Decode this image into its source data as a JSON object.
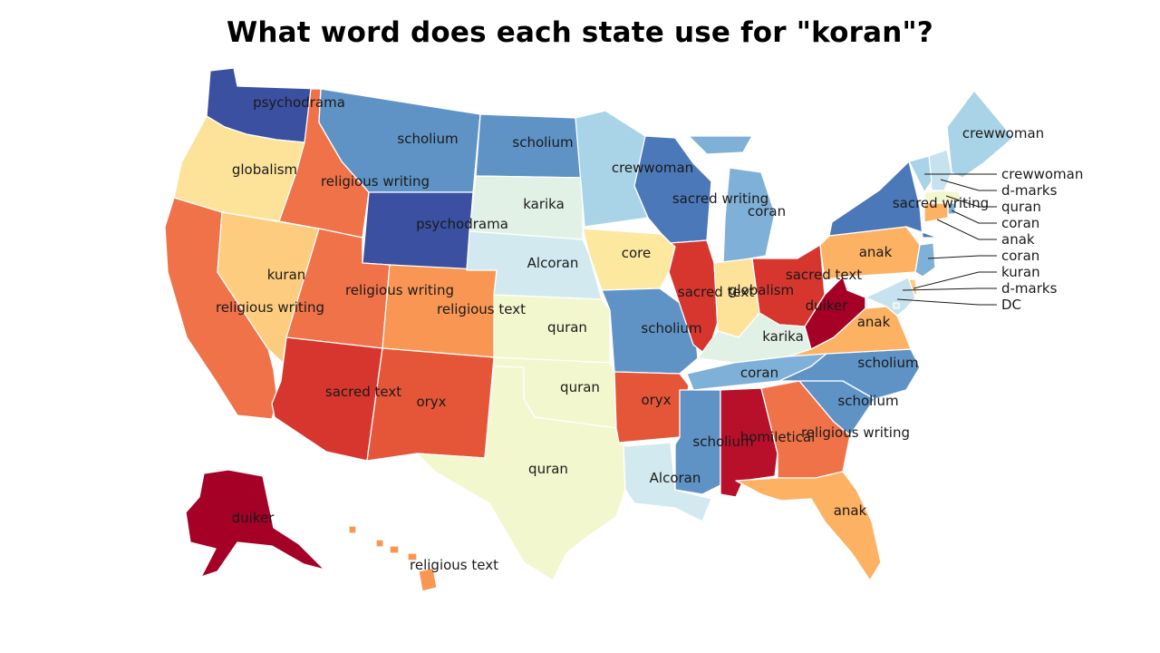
{
  "title": "What word does each state use for \"koran\"?",
  "colors": {
    "psychodrama": "#3b50a0",
    "scholium": "#5f93c6",
    "crewwoman": "#a9d4e7",
    "coran": "#7fb1d8",
    "karika": "#e2f1e6",
    "Alcoran": "#d2eaef",
    "quran": "#f3f7ce",
    "core": "#fde8a0",
    "globalism": "#fde39a",
    "kuran": "#fdcc7e",
    "anak": "#fcb163",
    "religious text": "#f99654",
    "religious writing": "#f07249",
    "oryx": "#e55538",
    "sacred text": "#d7362e",
    "duiker": "#a50026",
    "homiletical": "#b8102a",
    "sacred writing": "#4b78b8",
    "d-marks": "#c6e2ee",
    "DC": "#d2eaef"
  },
  "states": [
    {
      "id": "WA",
      "word": "psychodrama",
      "label": "psychodrama"
    },
    {
      "id": "OR",
      "word": "globalism",
      "label": "globalism"
    },
    {
      "id": "CA",
      "word": "religious writing",
      "label": "religious writing"
    },
    {
      "id": "NV",
      "word": "kuran",
      "label": "kuran"
    },
    {
      "id": "ID",
      "word": "religious writing",
      "label": "religious writing"
    },
    {
      "id": "MT",
      "word": "scholium",
      "label": "scholium"
    },
    {
      "id": "WY",
      "word": "psychodrama",
      "label": "psychodrama"
    },
    {
      "id": "UT",
      "word": "religious writing",
      "label": "religious writing"
    },
    {
      "id": "AZ",
      "word": "sacred text",
      "label": "sacred text"
    },
    {
      "id": "CO",
      "word": "religious text",
      "label": "religious text"
    },
    {
      "id": "NM",
      "word": "oryx",
      "label": "oryx"
    },
    {
      "id": "ND",
      "word": "scholium",
      "label": "scholium"
    },
    {
      "id": "SD",
      "word": "karika",
      "label": "karika"
    },
    {
      "id": "NE",
      "word": "Alcoran",
      "label": "Alcoran"
    },
    {
      "id": "KS",
      "word": "quran",
      "label": "quran"
    },
    {
      "id": "OK",
      "word": "quran",
      "label": "quran"
    },
    {
      "id": "TX",
      "word": "quran",
      "label": "quran"
    },
    {
      "id": "MN",
      "word": "crewwoman",
      "label": "crewwoman"
    },
    {
      "id": "IA",
      "word": "core",
      "label": "core"
    },
    {
      "id": "MO",
      "word": "scholium",
      "label": "scholium"
    },
    {
      "id": "AR",
      "word": "oryx",
      "label": "oryx"
    },
    {
      "id": "LA",
      "word": "Alcoran",
      "label": "Alcoran"
    },
    {
      "id": "WI",
      "word": "sacred writing",
      "label": "sacred writing"
    },
    {
      "id": "MI",
      "word": "coran",
      "label": "coran"
    },
    {
      "id": "IL",
      "word": "sacred text",
      "label": "sacred text"
    },
    {
      "id": "IN",
      "word": "globalism",
      "label": "globalism"
    },
    {
      "id": "OH",
      "word": "sacred text",
      "label": "sacred text"
    },
    {
      "id": "KY",
      "word": "karika",
      "label": "karika"
    },
    {
      "id": "TN",
      "word": "coran",
      "label": "coran"
    },
    {
      "id": "MS",
      "word": "scholium",
      "label": "scholium"
    },
    {
      "id": "AL",
      "word": "homiletical",
      "label": "homiletical"
    },
    {
      "id": "GA",
      "word": "religious writing",
      "label": "religious writing"
    },
    {
      "id": "FL",
      "word": "anak",
      "label": "anak"
    },
    {
      "id": "SC",
      "word": "scholium",
      "label": "scholium"
    },
    {
      "id": "NC",
      "word": "scholium",
      "label": "scholium"
    },
    {
      "id": "VA",
      "word": "anak",
      "label": "anak"
    },
    {
      "id": "WV",
      "word": "duiker",
      "label": "duiker"
    },
    {
      "id": "PA",
      "word": "anak",
      "label": "anak"
    },
    {
      "id": "NY",
      "word": "sacred writing",
      "label": "sacred writing"
    },
    {
      "id": "ME",
      "word": "crewwoman",
      "label": "crewwoman"
    },
    {
      "id": "AK",
      "word": "duiker",
      "label": "duiker"
    },
    {
      "id": "HI",
      "word": "religious text",
      "label": "religious text"
    },
    {
      "id": "NH",
      "word": "d-marks",
      "label": ""
    },
    {
      "id": "VT",
      "word": "crewwoman",
      "label": ""
    },
    {
      "id": "MA",
      "word": "quran",
      "label": ""
    },
    {
      "id": "RI",
      "word": "coran",
      "label": ""
    },
    {
      "id": "CT",
      "word": "anak",
      "label": ""
    },
    {
      "id": "NJ",
      "word": "coran",
      "label": ""
    },
    {
      "id": "DE",
      "word": "kuran",
      "label": ""
    },
    {
      "id": "MD",
      "word": "d-marks",
      "label": ""
    },
    {
      "id": "DC",
      "word": "DC",
      "label": ""
    }
  ],
  "callouts": [
    {
      "state": "VT",
      "text": "crewwoman"
    },
    {
      "state": "NH",
      "text": "d-marks"
    },
    {
      "state": "MA",
      "text": "quran"
    },
    {
      "state": "RI",
      "text": "coran"
    },
    {
      "state": "CT",
      "text": "anak"
    },
    {
      "state": "NJ",
      "text": "coran"
    },
    {
      "state": "DE",
      "text": "kuran"
    },
    {
      "state": "MD",
      "text": "d-marks"
    },
    {
      "state": "DC",
      "text": "DC"
    }
  ]
}
